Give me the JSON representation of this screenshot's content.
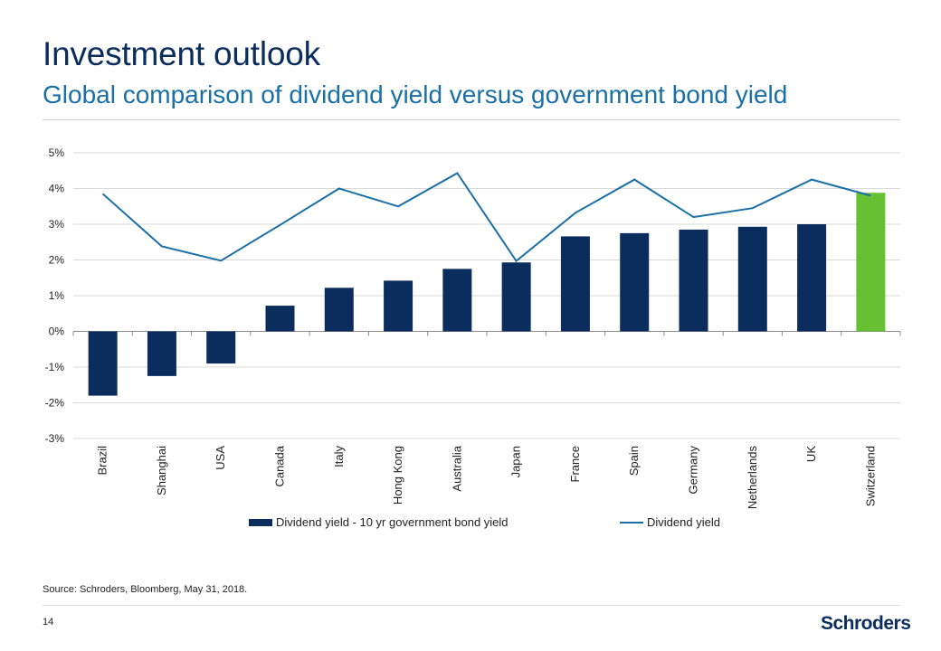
{
  "slide": {
    "title": "Investment outlook",
    "subtitle": "Global comparison of dividend yield versus government bond yield",
    "source": "Source: Schroders, Bloomberg, May 31, 2018.",
    "page_number": "14",
    "logo_text": "Schroders"
  },
  "colors": {
    "bar": "#0a2d5e",
    "bar_highlight": "#66c132",
    "line": "#1a6fa6",
    "grid": "#d9d9d9"
  },
  "chart_data": {
    "type": "bar",
    "title": "",
    "xlabel": "",
    "ylabel": "",
    "ylim": [
      -3,
      5
    ],
    "yticks": [
      5,
      4,
      3,
      2,
      1,
      0,
      -1,
      -2,
      -3
    ],
    "ytick_labels": [
      "5%",
      "4%",
      "3%",
      "2%",
      "1%",
      "0%",
      "-1%",
      "-2%",
      "-3%"
    ],
    "grid": true,
    "legend_position": "bottom",
    "categories": [
      "Brazil",
      "Shanghai",
      "USA",
      "Canada",
      "Italy",
      "Hong Kong",
      "Australia",
      "Japan",
      "France",
      "Spain",
      "Germany",
      "Netherlands",
      "UK",
      "Switzerland"
    ],
    "highlight_category": "Switzerland",
    "series": [
      {
        "name": "Dividend yield - 10 yr government bond yield",
        "type": "bar",
        "values": [
          -1.8,
          -1.25,
          -0.9,
          0.72,
          1.22,
          1.42,
          1.75,
          1.93,
          2.66,
          2.75,
          2.85,
          2.93,
          3.0,
          3.88
        ]
      },
      {
        "name": "Dividend yield",
        "type": "line",
        "values": [
          3.85,
          2.38,
          1.98,
          2.98,
          4.0,
          3.5,
          4.43,
          1.97,
          3.32,
          4.25,
          3.2,
          3.45,
          4.25,
          3.8
        ]
      }
    ]
  }
}
